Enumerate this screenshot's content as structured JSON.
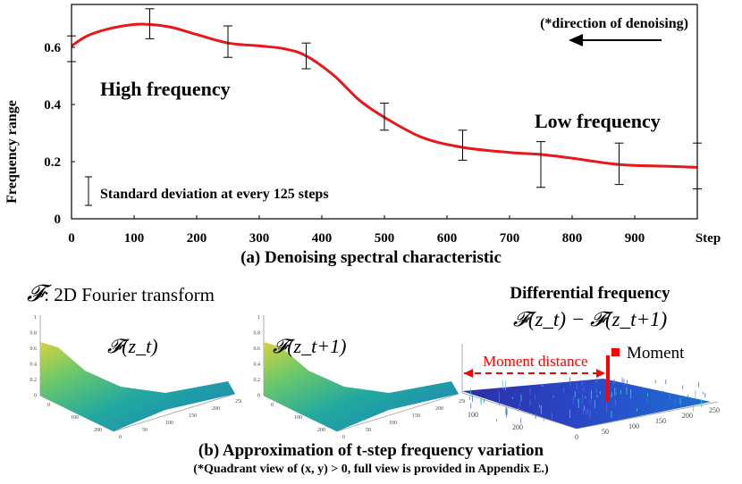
{
  "chart_data": {
    "type": "line",
    "title": "(a) Denoising spectral characteristic",
    "xlabel": "Step",
    "ylabel": "Frequency range",
    "xlim": [
      0,
      1000
    ],
    "ylim": [
      0,
      0.75
    ],
    "x_ticks": [
      "0",
      "100",
      "200",
      "300",
      "400",
      "500",
      "600",
      "700",
      "800",
      "900"
    ],
    "y_ticks": [
      "0",
      "0.2",
      "0.4",
      "0.6"
    ],
    "series": [
      {
        "name": "frequency range",
        "color": "#e8171a",
        "x": [
          0,
          25,
          60,
          100,
          125,
          160,
          200,
          250,
          300,
          340,
          375,
          420,
          460,
          500,
          560,
          625,
          700,
          750,
          800,
          875,
          950,
          1000
        ],
        "values": [
          0.605,
          0.64,
          0.665,
          0.68,
          0.68,
          0.67,
          0.645,
          0.615,
          0.605,
          0.595,
          0.57,
          0.5,
          0.415,
          0.355,
          0.285,
          0.25,
          0.232,
          0.225,
          0.212,
          0.19,
          0.184,
          0.18
        ]
      }
    ],
    "error_bars": [
      {
        "x": 0,
        "low": 0.55,
        "high": 0.64
      },
      {
        "x": 125,
        "low": 0.63,
        "high": 0.735
      },
      {
        "x": 250,
        "low": 0.565,
        "high": 0.675
      },
      {
        "x": 375,
        "low": 0.525,
        "high": 0.615
      },
      {
        "x": 500,
        "low": 0.31,
        "high": 0.405
      },
      {
        "x": 625,
        "low": 0.205,
        "high": 0.31
      },
      {
        "x": 750,
        "low": 0.11,
        "high": 0.27
      },
      {
        "x": 875,
        "low": 0.12,
        "high": 0.265
      },
      {
        "x": 1000,
        "low": 0.105,
        "high": 0.265
      }
    ],
    "annotations": {
      "direction": "(*direction of denoising)",
      "high": "High frequency",
      "low": "Low frequency",
      "legend_std": "Standard deviation at every 125 steps"
    }
  },
  "panel_b": {
    "fourier_label": ": 2D Fourier transform",
    "fourier_symbol": "𝓕",
    "plot1_label": "𝓕(z_t)",
    "plot2_label": "𝓕(z_t+1)",
    "diff_title": "Differential frequency",
    "diff_formula": "𝓕(z_t) − 𝓕(z_t+1)",
    "moment_legend": "Moment",
    "moment_distance": "Moment distance",
    "surface_z_ticks": [
      "1",
      "0.8",
      "0.6",
      "0.4",
      "0.2",
      "0"
    ],
    "surface_y_ticks": [
      "0",
      "100",
      "200"
    ],
    "surface_x_ticks": [
      "0",
      "50",
      "100",
      "150",
      "200",
      "250"
    ],
    "diff_y_ticks": [
      "100",
      "200"
    ],
    "diff_x_ticks": [
      "0",
      "50",
      "100",
      "150",
      "200",
      "250"
    ],
    "caption": "(b) Approximation of t-step frequency variation",
    "note": "(*Quadrant view of (x, y) > 0, full view is provided in Appendix E.)"
  },
  "colors": {
    "curve": "#e8171a",
    "arrow": "#000000",
    "moment": "#ff0000"
  }
}
